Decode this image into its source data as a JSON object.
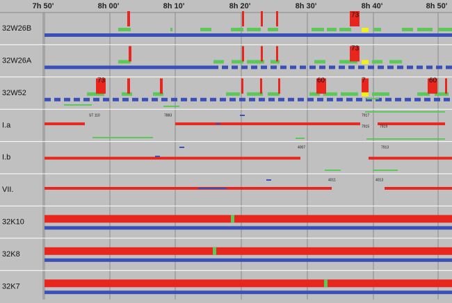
{
  "header": {
    "times": [
      "7h 50'",
      "8h 00'",
      "8h 10'",
      "8h 20'",
      "8h 30'",
      "8h 40'",
      "8h 50'"
    ]
  },
  "rows": [
    {
      "label": "32W26B",
      "tags": [
        "73"
      ]
    },
    {
      "label": "32W26A",
      "tags": [
        "73"
      ]
    },
    {
      "label": "32W52",
      "tags": [
        "73",
        "60",
        "7",
        "60"
      ]
    },
    {
      "label": "I.a",
      "tags": [
        "ST 110",
        "7883",
        "7917",
        "7915",
        "7919"
      ]
    },
    {
      "label": "I.b",
      "tags": [
        "4007",
        "7913"
      ]
    },
    {
      "label": "VII.",
      "tags": [
        "4011",
        "4013"
      ]
    },
    {
      "label": "32K10",
      "tags": []
    },
    {
      "label": "32K8",
      "tags": []
    },
    {
      "label": "32K7",
      "tags": []
    }
  ]
}
